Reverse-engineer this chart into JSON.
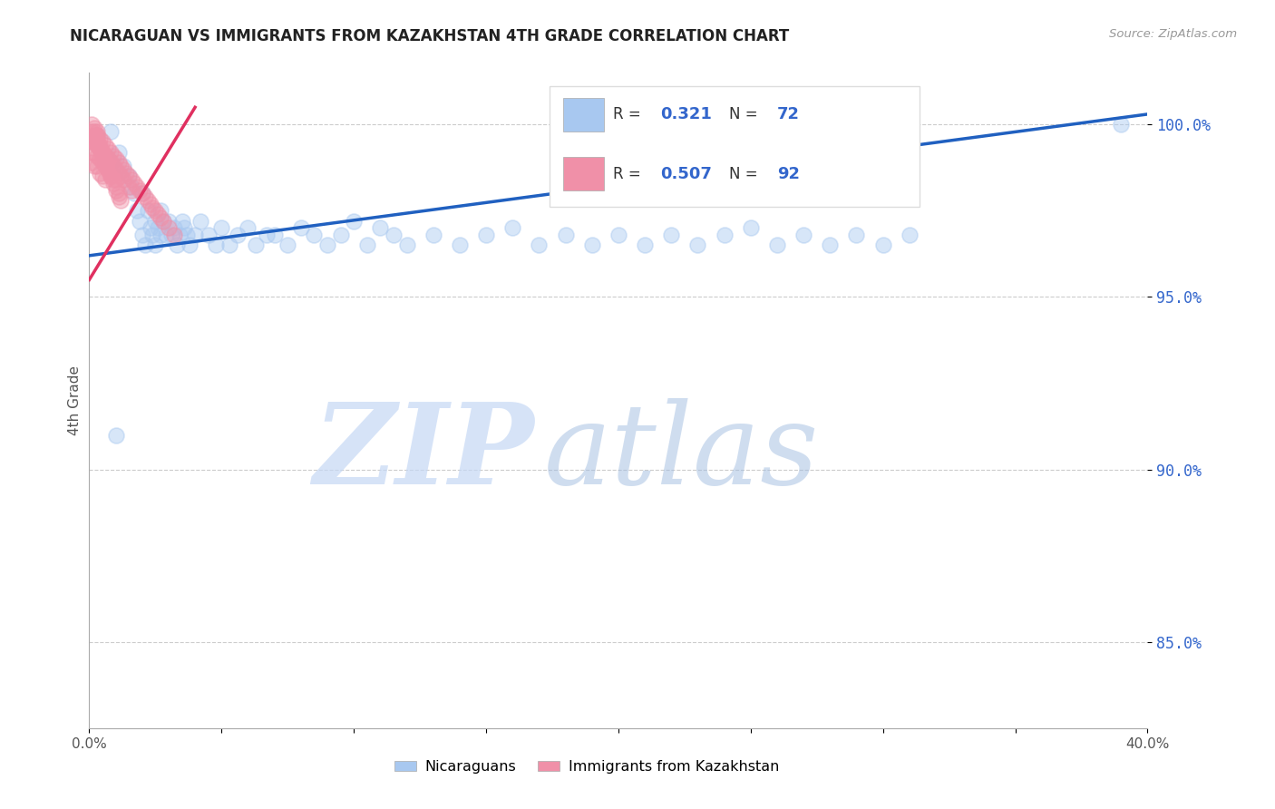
{
  "title": "NICARAGUAN VS IMMIGRANTS FROM KAZAKHSTAN 4TH GRADE CORRELATION CHART",
  "source": "Source: ZipAtlas.com",
  "ylabel": "4th Grade",
  "xlim": [
    0.0,
    0.4
  ],
  "ylim": [
    0.825,
    1.015
  ],
  "xtick_pos": [
    0.0,
    0.05,
    0.1,
    0.15,
    0.2,
    0.25,
    0.3,
    0.35,
    0.4
  ],
  "xtick_labels": [
    "0.0%",
    "",
    "",
    "",
    "",
    "",
    "",
    "",
    "40.0%"
  ],
  "ytick_pos": [
    0.85,
    0.9,
    0.95,
    1.0
  ],
  "ytick_labels": [
    "85.0%",
    "90.0%",
    "95.0%",
    "100.0%"
  ],
  "blue_R": 0.321,
  "blue_N": 72,
  "pink_R": 0.507,
  "pink_N": 92,
  "blue_color": "#a8c8f0",
  "pink_color": "#f090a8",
  "blue_line_color": "#2060c0",
  "pink_line_color": "#e03060",
  "blue_line_x": [
    0.0,
    0.4
  ],
  "blue_line_y": [
    0.962,
    1.003
  ],
  "pink_line_x": [
    0.0,
    0.04
  ],
  "pink_line_y": [
    0.955,
    1.005
  ],
  "blue_scatter_x": [
    0.008,
    0.011,
    0.013,
    0.015,
    0.016,
    0.017,
    0.018,
    0.019,
    0.02,
    0.02,
    0.021,
    0.022,
    0.023,
    0.024,
    0.025,
    0.025,
    0.026,
    0.027,
    0.027,
    0.028,
    0.029,
    0.03,
    0.031,
    0.032,
    0.033,
    0.034,
    0.035,
    0.036,
    0.037,
    0.038,
    0.04,
    0.042,
    0.045,
    0.048,
    0.05,
    0.053,
    0.056,
    0.06,
    0.063,
    0.067,
    0.07,
    0.075,
    0.08,
    0.085,
    0.09,
    0.095,
    0.1,
    0.105,
    0.11,
    0.115,
    0.12,
    0.13,
    0.14,
    0.15,
    0.16,
    0.17,
    0.18,
    0.19,
    0.2,
    0.21,
    0.22,
    0.23,
    0.24,
    0.25,
    0.26,
    0.27,
    0.28,
    0.29,
    0.3,
    0.31,
    0.39,
    0.01
  ],
  "blue_scatter_y": [
    0.998,
    0.992,
    0.988,
    0.985,
    0.982,
    0.98,
    0.975,
    0.972,
    0.968,
    0.98,
    0.965,
    0.975,
    0.97,
    0.968,
    0.972,
    0.965,
    0.97,
    0.968,
    0.975,
    0.972,
    0.968,
    0.972,
    0.968,
    0.97,
    0.965,
    0.968,
    0.972,
    0.97,
    0.968,
    0.965,
    0.968,
    0.972,
    0.968,
    0.965,
    0.97,
    0.965,
    0.968,
    0.97,
    0.965,
    0.968,
    0.968,
    0.965,
    0.97,
    0.968,
    0.965,
    0.968,
    0.972,
    0.965,
    0.97,
    0.968,
    0.965,
    0.968,
    0.965,
    0.968,
    0.97,
    0.965,
    0.968,
    0.965,
    0.968,
    0.965,
    0.968,
    0.965,
    0.968,
    0.97,
    0.965,
    0.968,
    0.965,
    0.968,
    0.965,
    0.968,
    1.0,
    0.91
  ],
  "pink_scatter_x": [
    0.001,
    0.001,
    0.001,
    0.001,
    0.002,
    0.002,
    0.002,
    0.002,
    0.003,
    0.003,
    0.003,
    0.003,
    0.004,
    0.004,
    0.004,
    0.004,
    0.005,
    0.005,
    0.005,
    0.005,
    0.006,
    0.006,
    0.006,
    0.006,
    0.007,
    0.007,
    0.007,
    0.008,
    0.008,
    0.008,
    0.009,
    0.009,
    0.01,
    0.01,
    0.01,
    0.011,
    0.011,
    0.012,
    0.012,
    0.013,
    0.013,
    0.014,
    0.015,
    0.015,
    0.016,
    0.016,
    0.017,
    0.018,
    0.019,
    0.02,
    0.021,
    0.022,
    0.023,
    0.024,
    0.025,
    0.026,
    0.027,
    0.028,
    0.03,
    0.032,
    0.003,
    0.004,
    0.005,
    0.006,
    0.007,
    0.008,
    0.009,
    0.01,
    0.011,
    0.012,
    0.002,
    0.003,
    0.004,
    0.005,
    0.006,
    0.007,
    0.008,
    0.009,
    0.01,
    0.011,
    0.001,
    0.002,
    0.003,
    0.003,
    0.002,
    0.002,
    0.003,
    0.004,
    0.005,
    0.006,
    0.007,
    0.008
  ],
  "pink_scatter_y": [
    0.998,
    0.995,
    0.992,
    0.989,
    0.998,
    0.995,
    0.992,
    0.988,
    0.997,
    0.994,
    0.991,
    0.988,
    0.996,
    0.993,
    0.99,
    0.986,
    0.995,
    0.992,
    0.989,
    0.985,
    0.994,
    0.991,
    0.988,
    0.984,
    0.993,
    0.99,
    0.987,
    0.992,
    0.989,
    0.985,
    0.991,
    0.988,
    0.99,
    0.987,
    0.984,
    0.989,
    0.986,
    0.988,
    0.985,
    0.987,
    0.984,
    0.986,
    0.985,
    0.982,
    0.984,
    0.981,
    0.983,
    0.982,
    0.981,
    0.98,
    0.979,
    0.978,
    0.977,
    0.976,
    0.975,
    0.974,
    0.973,
    0.972,
    0.97,
    0.968,
    0.996,
    0.994,
    0.992,
    0.99,
    0.988,
    0.986,
    0.984,
    0.982,
    0.98,
    0.978,
    0.997,
    0.995,
    0.993,
    0.991,
    0.989,
    0.987,
    0.985,
    0.983,
    0.981,
    0.979,
    1.0,
    0.999,
    0.998,
    0.997,
    0.996,
    0.995,
    0.994,
    0.993,
    0.992,
    0.991,
    0.99,
    0.989
  ],
  "legend_R1": "0.321",
  "legend_N1": "72",
  "legend_R2": "0.507",
  "legend_N2": "92",
  "label_blue": "Nicaraguans",
  "label_pink": "Immigrants from Kazakhstan"
}
